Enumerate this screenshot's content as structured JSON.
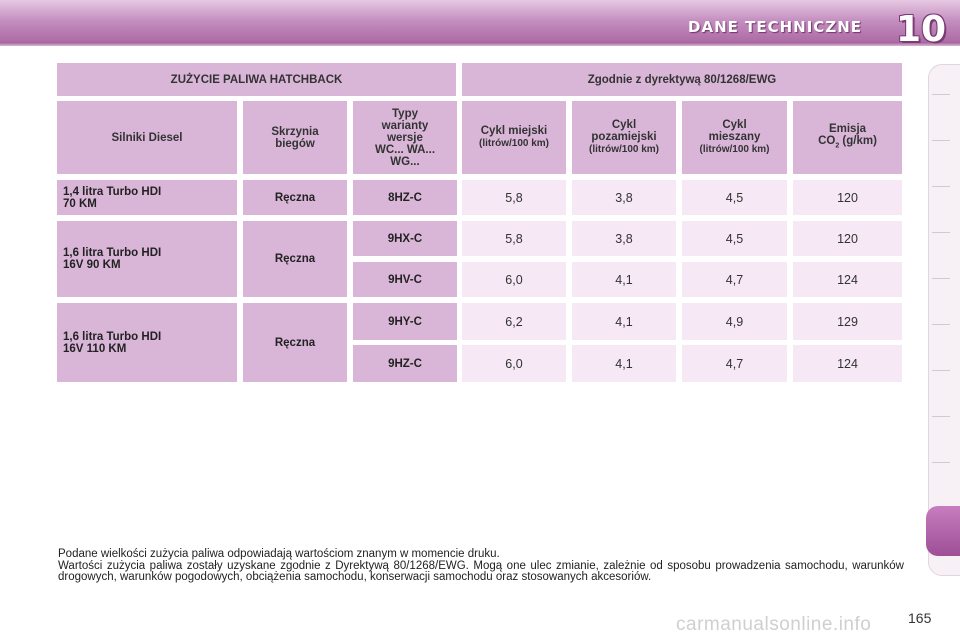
{
  "header": {
    "title": "DANE TECHNICZNE",
    "chapter": "10"
  },
  "table": {
    "top_left": "ZUŻYCIE PALIWA HATCHBACK",
    "top_right": "Zgodnie z dyrektywą 80/1268/EWG",
    "columns": {
      "engine": "Silniki Diesel",
      "gearbox": [
        "Skrzynia",
        "biegów"
      ],
      "type": [
        "Typy",
        "warianty",
        "wersje",
        "WC... WA...",
        "WG..."
      ],
      "urban": [
        "Cykl miejski",
        "(litrów/100 km)"
      ],
      "extra": [
        "Cykl",
        "pozamiejski",
        "(litrów/100 km)"
      ],
      "combined": [
        "Cykl",
        "mieszany",
        "(litrów/100 km)"
      ],
      "co2": [
        "Emisja",
        "CO",
        "2",
        " (g/km)"
      ]
    },
    "engines": [
      {
        "name": [
          "1,4 litra Turbo HDI",
          "70 KM"
        ],
        "gearbox": "Ręczna"
      },
      {
        "name": [
          "1,6 litra Turbo HDI",
          "16V 90 KM"
        ],
        "gearbox": "Ręczna"
      },
      {
        "name": [
          "1,6 litra Turbo HDI",
          "16V 110 KM"
        ],
        "gearbox": "Ręczna"
      }
    ],
    "rows": [
      {
        "code": "8HZ-C",
        "urban": "5,8",
        "extra": "3,8",
        "combined": "4,5",
        "co2": "120"
      },
      {
        "code": "9HX-C",
        "urban": "5,8",
        "extra": "3,8",
        "combined": "4,5",
        "co2": "120"
      },
      {
        "code": "9HV-C",
        "urban": "6,0",
        "extra": "4,1",
        "combined": "4,7",
        "co2": "124"
      },
      {
        "code": "9HY-C",
        "urban": "6,2",
        "extra": "4,1",
        "combined": "4,9",
        "co2": "129"
      },
      {
        "code": "9HZ-C",
        "urban": "6,0",
        "extra": "4,1",
        "combined": "4,7",
        "co2": "124"
      }
    ]
  },
  "note": {
    "line1": "Podane wielkości zużycia paliwa odpowiadają wartościom znanym w momencie druku.",
    "line2": "Wartości zużycia paliwa zostały uzyskane zgodnie z Dyrektywą 80/1268/EWG. Mogą one ulec zmianie, zależnie od sposobu prowadzenia samochodu, warunków drogowych, warunków pogodowych, obciążenia samochodu, konserwacji samochodu oraz stosowanych akcesoriów."
  },
  "page_number": "165",
  "watermark": "carmanualsonline.info",
  "colors": {
    "accent": "#a8649f",
    "header_cell": "#d9b6d8",
    "value_cell": "#f6e8f4"
  }
}
